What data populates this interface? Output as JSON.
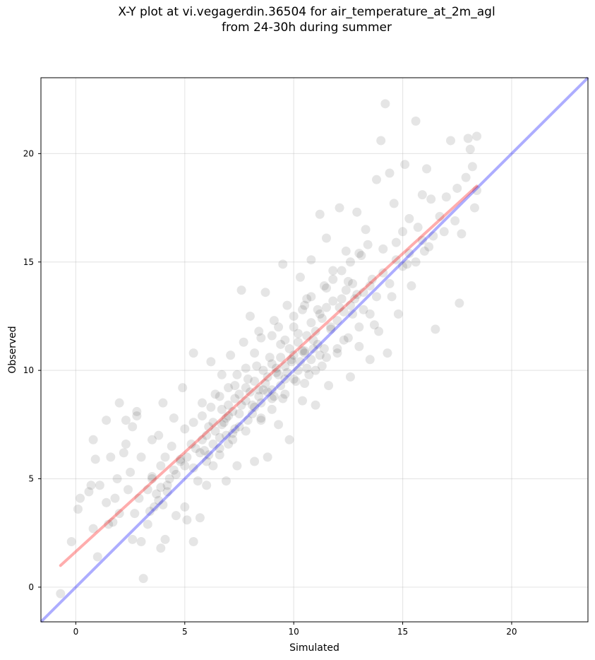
{
  "chart_data": {
    "type": "scatter",
    "title_line1": "X-Y plot at vi.vegagerdin.36504 for air_temperature_at_2m_agl",
    "title_line2": "from 24-30h during summer",
    "xlabel": "Simulated",
    "ylabel": "Observed",
    "xlim": [
      -1.6,
      23.5
    ],
    "ylim": [
      -1.6,
      23.5
    ],
    "xticks": [
      0,
      5,
      10,
      15,
      20
    ],
    "yticks": [
      0,
      5,
      10,
      15,
      20
    ],
    "grid": true,
    "point_color": "#000000",
    "point_opacity": 0.1,
    "identity_line": {
      "color": "#0000ff",
      "opacity": 0.32,
      "x": [
        -1.6,
        23.5
      ],
      "y": [
        -1.6,
        23.5
      ]
    },
    "fit_line": {
      "color": "#ff0000",
      "opacity": 0.32,
      "x": [
        -0.7,
        18.4
      ],
      "y": [
        1.0,
        18.5
      ]
    },
    "points": [
      [
        -0.7,
        -0.3
      ],
      [
        -0.2,
        2.1
      ],
      [
        0.1,
        3.6
      ],
      [
        0.2,
        4.1
      ],
      [
        0.6,
        4.4
      ],
      [
        0.7,
        4.7
      ],
      [
        0.8,
        2.7
      ],
      [
        0.8,
        6.8
      ],
      [
        0.9,
        5.9
      ],
      [
        1.0,
        1.4
      ],
      [
        1.1,
        4.7
      ],
      [
        1.4,
        3.9
      ],
      [
        1.4,
        7.7
      ],
      [
        1.5,
        2.9
      ],
      [
        1.6,
        6.0
      ],
      [
        1.7,
        3.0
      ],
      [
        1.8,
        4.1
      ],
      [
        1.9,
        5.0
      ],
      [
        2.0,
        3.4
      ],
      [
        2.0,
        8.5
      ],
      [
        2.2,
        6.2
      ],
      [
        2.3,
        6.6
      ],
      [
        2.3,
        7.7
      ],
      [
        2.4,
        4.5
      ],
      [
        2.5,
        5.3
      ],
      [
        2.6,
        2.2
      ],
      [
        2.6,
        7.4
      ],
      [
        2.7,
        3.4
      ],
      [
        2.8,
        7.9
      ],
      [
        2.8,
        8.1
      ],
      [
        2.9,
        4.1
      ],
      [
        3.0,
        2.1
      ],
      [
        3.0,
        6.0
      ],
      [
        3.1,
        0.4
      ],
      [
        3.3,
        2.9
      ],
      [
        3.3,
        4.5
      ],
      [
        3.4,
        3.5
      ],
      [
        3.5,
        5.0
      ],
      [
        3.5,
        6.8
      ],
      [
        3.7,
        4.3
      ],
      [
        3.8,
        7.0
      ],
      [
        3.9,
        1.8
      ],
      [
        3.9,
        5.6
      ],
      [
        4.0,
        8.5
      ],
      [
        4.1,
        2.2
      ],
      [
        4.2,
        4.7
      ],
      [
        4.4,
        6.5
      ],
      [
        4.5,
        7.8
      ],
      [
        4.6,
        3.3
      ],
      [
        4.8,
        5.9
      ],
      [
        4.9,
        9.2
      ],
      [
        5.0,
        3.7
      ],
      [
        5.1,
        3.1
      ],
      [
        5.3,
        6.6
      ],
      [
        5.4,
        2.1
      ],
      [
        5.4,
        10.8
      ],
      [
        5.6,
        4.9
      ],
      [
        5.7,
        3.2
      ],
      [
        5.8,
        8.5
      ],
      [
        5.9,
        6.3
      ],
      [
        6.0,
        4.7
      ],
      [
        6.1,
        7.4
      ],
      [
        6.2,
        10.4
      ],
      [
        6.3,
        5.6
      ],
      [
        6.4,
        8.9
      ],
      [
        6.6,
        6.1
      ],
      [
        6.7,
        9.8
      ],
      [
        6.8,
        7.6
      ],
      [
        6.9,
        4.9
      ],
      [
        7.0,
        8.4
      ],
      [
        7.1,
        10.7
      ],
      [
        7.2,
        6.8
      ],
      [
        7.3,
        9.3
      ],
      [
        7.4,
        5.6
      ],
      [
        7.5,
        8.0
      ],
      [
        7.6,
        13.7
      ],
      [
        7.7,
        11.3
      ],
      [
        7.8,
        7.2
      ],
      [
        7.9,
        9.6
      ],
      [
        8.0,
        12.5
      ],
      [
        8.1,
        8.4
      ],
      [
        8.2,
        5.8
      ],
      [
        8.3,
        10.2
      ],
      [
        8.4,
        11.8
      ],
      [
        8.5,
        7.7
      ],
      [
        8.6,
        9.1
      ],
      [
        8.7,
        13.6
      ],
      [
        8.8,
        6.0
      ],
      [
        8.9,
        10.6
      ],
      [
        9.0,
        8.7
      ],
      [
        9.1,
        12.3
      ],
      [
        9.2,
        9.9
      ],
      [
        9.3,
        7.5
      ],
      [
        9.4,
        11.2
      ],
      [
        9.5,
        14.9
      ],
      [
        9.6,
        8.9
      ],
      [
        9.7,
        13.0
      ],
      [
        9.8,
        6.8
      ],
      [
        9.9,
        10.4
      ],
      [
        10.0,
        12.0
      ],
      [
        10.1,
        9.5
      ],
      [
        10.2,
        11.7
      ],
      [
        10.3,
        14.3
      ],
      [
        10.4,
        8.6
      ],
      [
        10.5,
        10.9
      ],
      [
        10.6,
        13.3
      ],
      [
        10.7,
        9.8
      ],
      [
        10.8,
        15.1
      ],
      [
        10.9,
        11.4
      ],
      [
        11.0,
        8.4
      ],
      [
        11.1,
        12.8
      ],
      [
        11.2,
        17.2
      ],
      [
        11.3,
        10.2
      ],
      [
        11.4,
        13.9
      ],
      [
        11.5,
        16.1
      ],
      [
        11.6,
        9.3
      ],
      [
        11.7,
        12.0
      ],
      [
        11.8,
        14.6
      ],
      [
        12.0,
        10.8
      ],
      [
        12.1,
        17.5
      ],
      [
        12.2,
        13.3
      ],
      [
        12.3,
        11.4
      ],
      [
        12.4,
        15.5
      ],
      [
        12.5,
        14.1
      ],
      [
        12.6,
        9.7
      ],
      [
        12.7,
        12.6
      ],
      [
        12.9,
        17.3
      ],
      [
        13.0,
        11.1
      ],
      [
        13.1,
        15.3
      ],
      [
        13.2,
        13.6
      ],
      [
        13.3,
        16.5
      ],
      [
        13.5,
        10.5
      ],
      [
        13.6,
        14.2
      ],
      [
        13.7,
        12.1
      ],
      [
        13.8,
        18.8
      ],
      [
        13.9,
        11.8
      ],
      [
        14.0,
        20.6
      ],
      [
        14.1,
        15.6
      ],
      [
        14.2,
        22.3
      ],
      [
        14.3,
        10.8
      ],
      [
        14.4,
        19.1
      ],
      [
        14.5,
        13.4
      ],
      [
        14.6,
        17.7
      ],
      [
        14.7,
        15.9
      ],
      [
        14.8,
        12.6
      ],
      [
        15.0,
        16.4
      ],
      [
        15.1,
        19.5
      ],
      [
        15.2,
        14.9
      ],
      [
        15.3,
        17.0
      ],
      [
        15.4,
        13.9
      ],
      [
        15.6,
        21.5
      ],
      [
        15.7,
        16.6
      ],
      [
        15.9,
        18.1
      ],
      [
        16.0,
        15.5
      ],
      [
        16.1,
        19.3
      ],
      [
        16.3,
        17.9
      ],
      [
        16.4,
        16.2
      ],
      [
        16.5,
        11.9
      ],
      [
        16.7,
        17.1
      ],
      [
        16.9,
        16.4
      ],
      [
        17.0,
        18.0
      ],
      [
        17.2,
        20.6
      ],
      [
        17.4,
        16.9
      ],
      [
        17.5,
        18.4
      ],
      [
        17.6,
        13.1
      ],
      [
        17.7,
        16.3
      ],
      [
        17.9,
        18.9
      ],
      [
        18.0,
        20.7
      ],
      [
        18.1,
        20.2
      ],
      [
        18.2,
        19.4
      ],
      [
        18.3,
        17.5
      ],
      [
        18.4,
        20.8
      ],
      [
        18.4,
        18.3
      ],
      [
        6.7,
        8.2
      ],
      [
        7.0,
        7.9
      ],
      [
        7.3,
        8.7
      ],
      [
        7.5,
        8.9
      ],
      [
        7.8,
        9.2
      ],
      [
        8.0,
        9.0
      ],
      [
        8.2,
        9.5
      ],
      [
        8.4,
        9.1
      ],
      [
        8.6,
        10.0
      ],
      [
        8.8,
        9.7
      ],
      [
        9.0,
        10.3
      ],
      [
        9.2,
        10.1
      ],
      [
        9.4,
        10.6
      ],
      [
        9.6,
        10.2
      ],
      [
        9.8,
        11.0
      ],
      [
        10.0,
        10.7
      ],
      [
        10.2,
        11.3
      ],
      [
        10.4,
        10.9
      ],
      [
        10.6,
        11.6
      ],
      [
        10.8,
        12.2
      ],
      [
        11.0,
        11.8
      ],
      [
        11.2,
        12.6
      ],
      [
        11.5,
        12.9
      ],
      [
        11.8,
        13.2
      ],
      [
        12.1,
        12.9
      ],
      [
        12.4,
        13.7
      ],
      [
        12.7,
        14.0
      ],
      [
        6.0,
        7.0
      ],
      [
        6.3,
        7.6
      ],
      [
        6.6,
        6.9
      ],
      [
        6.9,
        7.8
      ],
      [
        7.2,
        8.1
      ],
      [
        7.5,
        7.4
      ],
      [
        7.8,
        8.6
      ],
      [
        8.1,
        8.0
      ],
      [
        8.4,
        8.8
      ],
      [
        8.7,
        9.4
      ],
      [
        9.0,
        9.1
      ],
      [
        9.3,
        9.8
      ],
      [
        9.6,
        9.6
      ],
      [
        9.9,
        10.5
      ],
      [
        10.2,
        10.0
      ],
      [
        10.5,
        10.8
      ],
      [
        10.8,
        10.5
      ],
      [
        11.1,
        11.2
      ],
      [
        11.4,
        11.0
      ],
      [
        11.7,
        11.9
      ],
      [
        5.5,
        6.4
      ],
      [
        5.8,
        6.8
      ],
      [
        6.1,
        6.1
      ],
      [
        6.4,
        7.2
      ],
      [
        6.7,
        7.5
      ],
      [
        7.0,
        6.6
      ],
      [
        7.3,
        7.3
      ],
      [
        7.6,
        8.4
      ],
      [
        7.9,
        7.7
      ],
      [
        8.2,
        8.3
      ],
      [
        8.5,
        8.5
      ],
      [
        8.8,
        9.0
      ],
      [
        9.1,
        8.8
      ],
      [
        9.4,
        9.3
      ],
      [
        9.7,
        9.9
      ],
      [
        10.0,
        9.6
      ],
      [
        10.3,
        10.4
      ],
      [
        10.6,
        10.1
      ],
      [
        10.9,
        11.0
      ],
      [
        11.2,
        10.7
      ],
      [
        4.5,
        5.4
      ],
      [
        4.8,
        5.8
      ],
      [
        5.1,
        6.0
      ],
      [
        5.4,
        5.5
      ],
      [
        5.7,
        6.2
      ],
      [
        6.0,
        5.8
      ],
      [
        6.3,
        6.6
      ],
      [
        6.6,
        6.4
      ],
      [
        6.9,
        7.0
      ],
      [
        7.2,
        7.1
      ],
      [
        3.8,
        4.0
      ],
      [
        4.0,
        3.8
      ],
      [
        4.2,
        4.4
      ],
      [
        3.6,
        3.7
      ],
      [
        4.3,
        5.0
      ],
      [
        3.9,
        4.6
      ],
      [
        4.6,
        5.2
      ],
      [
        5.0,
        5.6
      ],
      [
        3.5,
        5.1
      ],
      [
        4.1,
        6.0
      ],
      [
        12.0,
        12.3
      ],
      [
        12.3,
        12.7
      ],
      [
        12.6,
        13.0
      ],
      [
        12.9,
        13.5
      ],
      [
        13.2,
        12.8
      ],
      [
        13.5,
        13.9
      ],
      [
        13.8,
        13.4
      ],
      [
        14.1,
        14.5
      ],
      [
        14.4,
        14.0
      ],
      [
        14.7,
        15.1
      ],
      [
        15.0,
        14.8
      ],
      [
        15.3,
        15.4
      ],
      [
        15.6,
        15.0
      ],
      [
        15.9,
        16.0
      ],
      [
        16.2,
        15.7
      ],
      [
        9.0,
        11.6
      ],
      [
        9.3,
        12.0
      ],
      [
        9.6,
        11.4
      ],
      [
        10.0,
        12.5
      ],
      [
        10.4,
        12.8
      ],
      [
        8.5,
        11.5
      ],
      [
        8.2,
        10.8
      ],
      [
        7.8,
        10.1
      ],
      [
        7.4,
        9.8
      ],
      [
        7.0,
        9.2
      ],
      [
        6.6,
        8.8
      ],
      [
        6.2,
        8.3
      ],
      [
        5.8,
        7.9
      ],
      [
        5.4,
        7.6
      ],
      [
        5.0,
        7.3
      ],
      [
        10.5,
        9.4
      ],
      [
        11.0,
        10.0
      ],
      [
        11.5,
        10.6
      ],
      [
        12.0,
        11.0
      ],
      [
        12.5,
        11.5
      ],
      [
        13.0,
        12.0
      ],
      [
        13.5,
        12.6
      ],
      [
        9.5,
        8.7
      ],
      [
        9.0,
        8.2
      ],
      [
        8.5,
        7.8
      ],
      [
        11.5,
        13.8
      ],
      [
        11.8,
        14.2
      ],
      [
        12.2,
        14.6
      ],
      [
        12.6,
        15.0
      ],
      [
        13.0,
        15.4
      ],
      [
        13.4,
        15.8
      ],
      [
        10.8,
        13.4
      ],
      [
        10.5,
        13.0
      ],
      [
        11.3,
        12.4
      ],
      [
        12.8,
        13.3
      ]
    ]
  }
}
